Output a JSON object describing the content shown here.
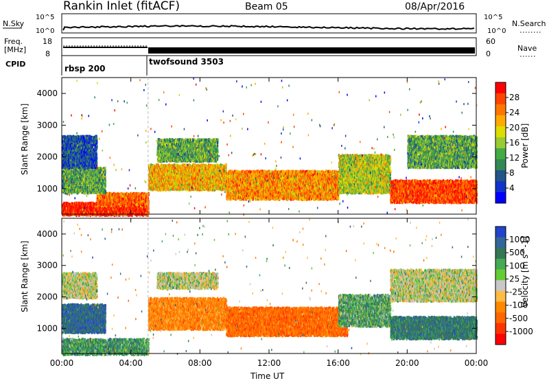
{
  "header": {
    "title": "Rankin Inlet (fitACF)",
    "beam": "Beam 05",
    "date": "08/Apr/2016"
  },
  "panels": {
    "nsky_label": "N.Sky",
    "nsearch_label": "N.Search",
    "nsky_ticks": [
      "10^5",
      "10^0"
    ],
    "nsky_ticks_right": [
      "10^5",
      "10^0"
    ],
    "freq_label_1": "Freq.",
    "freq_label_2": "[MHz]",
    "freq_ticks": [
      "18",
      "8"
    ],
    "nave_label": "Nave",
    "nave_ticks": [
      "60",
      "0"
    ],
    "cpid_label": "CPID",
    "cpid_items": [
      "rbsp 200",
      "twofsound 3503"
    ]
  },
  "power_colorbar": {
    "label": "Power [dB]",
    "ticks": [
      "28",
      "24",
      "20",
      "16",
      "12",
      "8",
      "4"
    ],
    "colors": [
      "#ff0000",
      "#ff4400",
      "#ff7700",
      "#ffaa00",
      "#dddd00",
      "#99cc33",
      "#44aa44",
      "#338855",
      "#225588",
      "#1133cc",
      "#0000ff"
    ]
  },
  "velocity_colorbar": {
    "label": "Velocity [m s^-1]",
    "ticks": [
      "1000",
      "500",
      "100",
      "25",
      "-25",
      "-100",
      "-500",
      "-1000"
    ],
    "colors": [
      "#2244cc",
      "#336699",
      "#337755",
      "#44aa55",
      "#66cc33",
      "#c8c8c8",
      "#ffbb44",
      "#ff8800",
      "#ff6600",
      "#ff3300",
      "#ff0000"
    ]
  },
  "chart_data": [
    {
      "type": "heatmap",
      "name_hint": "power",
      "ylabel": "Slant Range [km]",
      "ytick_labels": [
        "1000",
        "2000",
        "3000",
        "4000"
      ],
      "ylim": [
        200,
        4500
      ],
      "x_range_hours": [
        0,
        24
      ],
      "xtick_labels": [
        "00:00",
        "04:00",
        "08:00",
        "12:00",
        "16:00",
        "20:00",
        "00:00"
      ],
      "scatter_bands": [
        {
          "t0": 0.0,
          "t1": 5.0,
          "r0": 200,
          "r1": 600,
          "value": 28
        },
        {
          "t0": 2.0,
          "t1": 5.0,
          "r0": 500,
          "r1": 900,
          "value": 24
        },
        {
          "t0": 0.0,
          "t1": 2.5,
          "r0": 900,
          "r1": 1700,
          "value": 12
        },
        {
          "t0": 0.0,
          "t1": 2.0,
          "r0": 1700,
          "r1": 2700,
          "value": 6
        },
        {
          "t0": 5.0,
          "t1": 9.5,
          "r0": 1000,
          "r1": 1800,
          "value": 20
        },
        {
          "t0": 5.5,
          "t1": 9.0,
          "r0": 1900,
          "r1": 2600,
          "value": 12
        },
        {
          "t0": 9.5,
          "t1": 16.0,
          "r0": 700,
          "r1": 1600,
          "value": 22
        },
        {
          "t0": 16.0,
          "t1": 19.0,
          "r0": 900,
          "r1": 2100,
          "value": 16
        },
        {
          "t0": 19.0,
          "t1": 24.0,
          "r0": 600,
          "r1": 1300,
          "value": 26
        },
        {
          "t0": 20.0,
          "t1": 24.0,
          "r0": 1700,
          "r1": 2700,
          "value": 12
        }
      ]
    },
    {
      "type": "heatmap",
      "name_hint": "velocity",
      "ylabel": "Slant Range [km]",
      "ytick_labels": [
        "1000",
        "2000",
        "3000",
        "4000"
      ],
      "ylim": [
        200,
        4500
      ],
      "x_range_hours": [
        0,
        24
      ],
      "xlabel": "Time UT",
      "xtick_labels": [
        "00:00",
        "04:00",
        "08:00",
        "12:00",
        "16:00",
        "20:00",
        "00:00"
      ],
      "scatter_bands": [
        {
          "t0": 0.0,
          "t1": 5.0,
          "r0": 200,
          "r1": 700,
          "value": 100
        },
        {
          "t0": 0.0,
          "t1": 2.5,
          "r0": 900,
          "r1": 1800,
          "value": 300
        },
        {
          "t0": 0.0,
          "t1": 2.0,
          "r0": 2000,
          "r1": 2800,
          "value": 0
        },
        {
          "t0": 5.0,
          "t1": 9.5,
          "r0": 1000,
          "r1": 2000,
          "value": -300
        },
        {
          "t0": 5.5,
          "t1": 9.0,
          "r0": 2300,
          "r1": 2800,
          "value": 0
        },
        {
          "t0": 9.5,
          "t1": 16.5,
          "r0": 800,
          "r1": 1700,
          "value": -400
        },
        {
          "t0": 16.0,
          "t1": 19.0,
          "r0": 1100,
          "r1": 2100,
          "value": 80
        },
        {
          "t0": 19.0,
          "t1": 24.0,
          "r0": 700,
          "r1": 1400,
          "value": 200
        },
        {
          "t0": 19.0,
          "t1": 24.0,
          "r0": 1900,
          "r1": 2900,
          "value": 0
        }
      ]
    }
  ]
}
